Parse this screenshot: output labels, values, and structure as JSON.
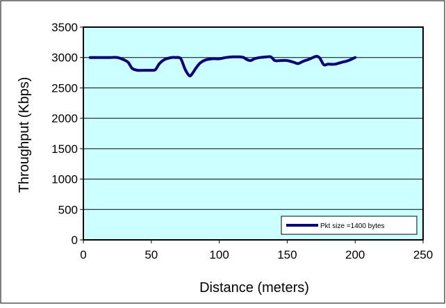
{
  "chart_data": {
    "type": "line",
    "title": "",
    "xlabel": "Distance (meters)",
    "ylabel": "Throughput (Kbps)",
    "xlim": [
      0,
      250
    ],
    "ylim": [
      0,
      3500
    ],
    "x_ticks": [
      0,
      50,
      100,
      150,
      200,
      250
    ],
    "y_ticks": [
      0,
      500,
      1000,
      1500,
      2000,
      2500,
      3000,
      3500
    ],
    "x_tick_labels": [
      "0",
      "50",
      "100",
      "150",
      "200",
      "250"
    ],
    "y_tick_labels": [
      "0",
      "500",
      "1000",
      "1500",
      "2000",
      "2500",
      "3000",
      "3500"
    ],
    "grid": "horizontal",
    "legend_position": "bottom-right",
    "plot_background": "#ccffff",
    "series": [
      {
        "name": "Pkt size =1400 bytes",
        "color": "#000080",
        "x": [
          5,
          10,
          15,
          20,
          25,
          30,
          33,
          36,
          40,
          45,
          50,
          53,
          56,
          60,
          65,
          68,
          70,
          72,
          75,
          78,
          80,
          83,
          86,
          90,
          95,
          100,
          105,
          110,
          115,
          118,
          120,
          123,
          126,
          130,
          135,
          138,
          141,
          145,
          150,
          155,
          158,
          162,
          166,
          170,
          172,
          174,
          177,
          180,
          185,
          190,
          195,
          200
        ],
        "y": [
          3000,
          3000,
          3000,
          3000,
          3000,
          2960,
          2920,
          2820,
          2790,
          2790,
          2790,
          2800,
          2900,
          2970,
          3000,
          3000,
          3000,
          2970,
          2800,
          2700,
          2730,
          2830,
          2910,
          2960,
          2980,
          2980,
          3000,
          3010,
          3010,
          3000,
          2970,
          2950,
          2980,
          3000,
          3010,
          3010,
          2950,
          2950,
          2950,
          2920,
          2900,
          2940,
          2970,
          3010,
          3020,
          2990,
          2880,
          2890,
          2890,
          2920,
          2950,
          3000
        ]
      }
    ]
  }
}
